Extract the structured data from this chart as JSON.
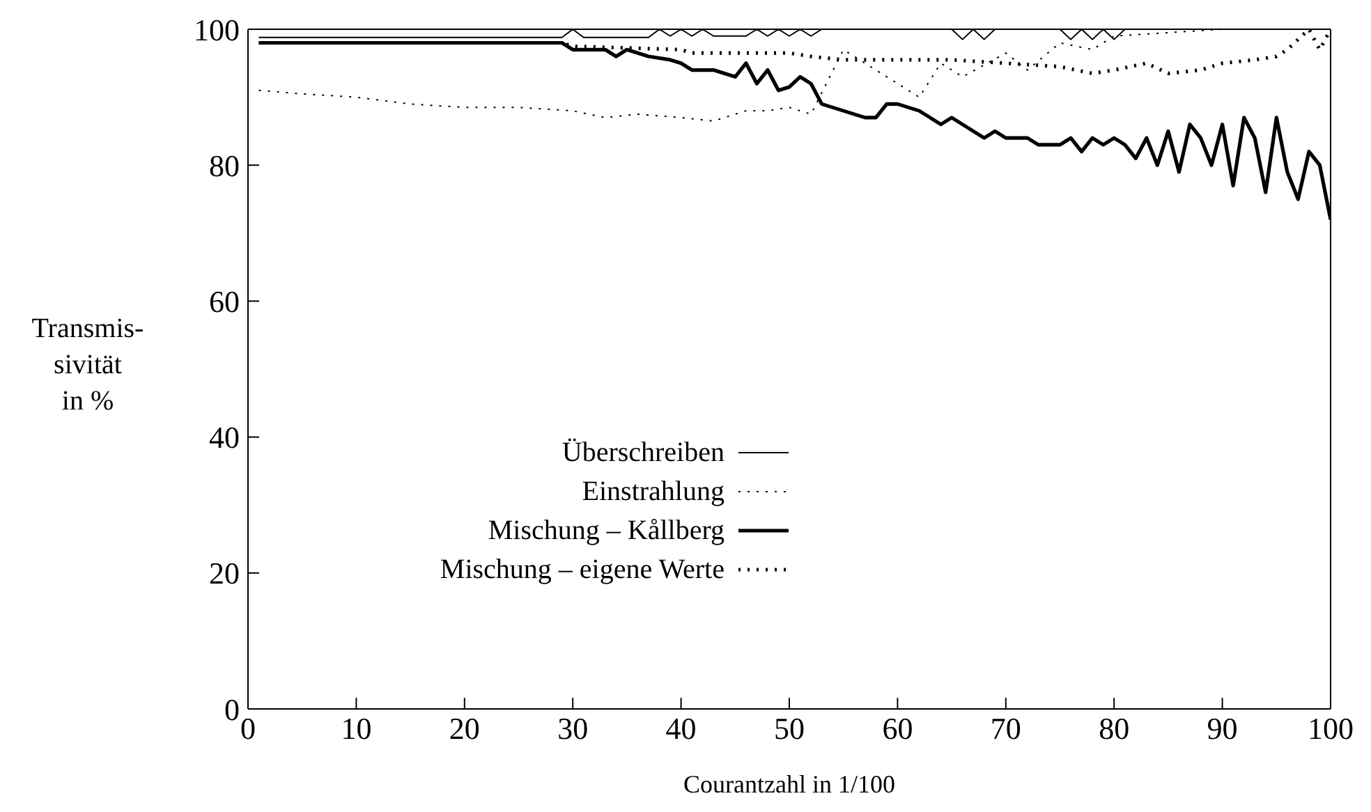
{
  "chart_data": {
    "type": "line",
    "xlabel": "Courantzahl in 1/100",
    "ylabel": "Transmis-\nsivität\nin %",
    "xlim": [
      0,
      100
    ],
    "ylim": [
      0,
      100
    ],
    "xticks": [
      0,
      10,
      20,
      30,
      40,
      50,
      60,
      70,
      80,
      90,
      100
    ],
    "yticks": [
      0,
      20,
      40,
      60,
      80,
      100
    ],
    "grid": false,
    "legend": "left",
    "marker": "none",
    "series": [
      {
        "name": "Überschreiben",
        "color": "#000000",
        "line_style": "solid",
        "x": [
          1,
          29,
          30,
          31,
          37,
          38,
          39,
          40,
          41,
          42,
          43,
          46,
          47,
          48,
          49,
          50,
          51,
          52,
          53,
          60,
          65,
          66,
          67,
          68,
          69,
          70,
          75,
          76,
          77,
          78,
          79,
          80,
          81,
          82,
          90,
          100
        ],
        "values": [
          98.8,
          98.8,
          100,
          98.8,
          98.8,
          100,
          99,
          100,
          99,
          100,
          99,
          99,
          100,
          99,
          100,
          99,
          100,
          99,
          100,
          100,
          100,
          98.5,
          100,
          98.5,
          100,
          100,
          100,
          98.5,
          100,
          98.5,
          100,
          98.5,
          100,
          100,
          100,
          100
        ]
      },
      {
        "name": "Einstrahlung",
        "color": "#000000",
        "line_style": "dotted",
        "x": [
          1,
          5,
          10,
          15,
          20,
          25,
          30,
          33,
          36,
          40,
          43,
          46,
          48,
          50,
          52,
          55,
          57,
          60,
          62,
          64,
          66,
          70,
          72,
          75,
          78,
          80,
          85,
          90,
          95,
          100
        ],
        "values": [
          91,
          90.5,
          90,
          89,
          88.5,
          88.5,
          88,
          87,
          87.5,
          87,
          86.5,
          88,
          88,
          88.5,
          87.5,
          97,
          95,
          92,
          90,
          95,
          93,
          96.5,
          94,
          98,
          97,
          99,
          99.5,
          100,
          100,
          100
        ]
      },
      {
        "name": "Mischung – Kållberg",
        "color": "#000000",
        "line_style": "solid",
        "x": [
          1,
          29,
          30,
          33,
          34,
          35,
          37,
          39,
          40,
          41,
          43,
          45,
          46,
          47,
          48,
          49,
          50,
          51,
          52,
          53,
          55,
          57,
          58,
          59,
          60,
          62,
          64,
          65,
          67,
          68,
          69,
          70,
          72,
          73,
          75,
          76,
          77,
          78,
          79,
          80,
          81,
          82,
          83,
          84,
          85,
          86,
          87,
          88,
          89,
          90,
          91,
          92,
          93,
          94,
          95,
          96,
          97,
          98,
          99,
          100
        ],
        "values": [
          98,
          98,
          97,
          97,
          96,
          97,
          96,
          95.5,
          95,
          94,
          94,
          93,
          95,
          92,
          94,
          91,
          91.5,
          93,
          92,
          89,
          88,
          87,
          87,
          89,
          89,
          88,
          86,
          87,
          85,
          84,
          85,
          84,
          84,
          83,
          83,
          84,
          82,
          84,
          83,
          84,
          83,
          81,
          84,
          80,
          85,
          79,
          86,
          84,
          80,
          86,
          77,
          87,
          84,
          76,
          87,
          79,
          75,
          82,
          80,
          72
        ]
      },
      {
        "name": "Mischung – eigene Werte",
        "color": "#000000",
        "line_style": "dotted",
        "x": [
          1,
          29,
          30,
          40,
          41,
          50,
          52,
          55,
          60,
          65,
          70,
          75,
          78,
          80,
          83,
          85,
          88,
          90,
          93,
          95,
          96,
          98,
          99,
          100
        ],
        "values": [
          98,
          98,
          97.5,
          97,
          96.5,
          96.5,
          96,
          95.5,
          95.5,
          95.5,
          95,
          94.5,
          93.5,
          94,
          95,
          93.5,
          94,
          95,
          95.5,
          96,
          97,
          100,
          97,
          100
        ]
      }
    ]
  }
}
